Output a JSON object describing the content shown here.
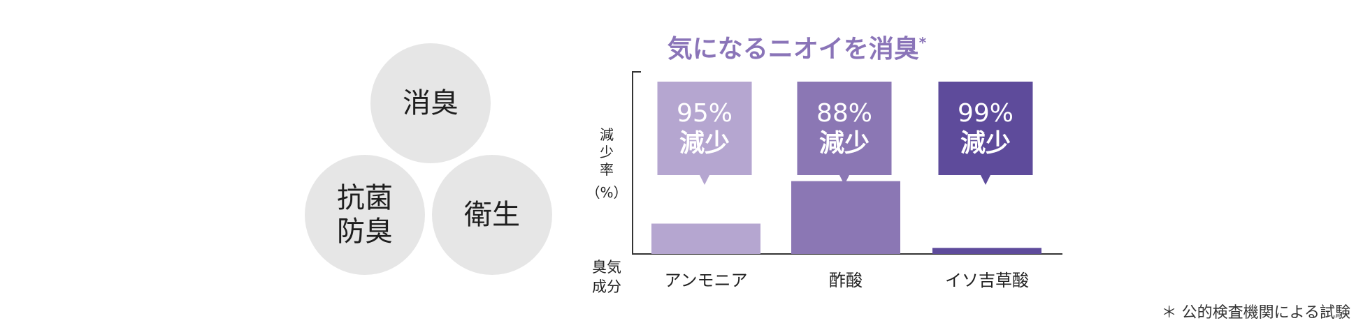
{
  "features": [
    {
      "name": "feature-deodorize",
      "label": "消臭"
    },
    {
      "name": "feature-antibacterial",
      "label": "抗菌\n防臭"
    },
    {
      "name": "feature-hygiene",
      "label": "衛生"
    }
  ],
  "chart_data": {
    "type": "bar",
    "title": "気になるニオイを消臭",
    "title_mark": "*",
    "ylabel_lines": [
      "減",
      "少",
      "率",
      "（%）"
    ],
    "xlabel_lines": [
      "臭気",
      "成分"
    ],
    "categories": [
      "アンモニア",
      "酢酸",
      "イソ吉草酸"
    ],
    "values_remaining_pct": [
      5,
      12,
      1
    ],
    "reduction_pct": [
      95,
      88,
      99
    ],
    "callout_values": [
      "95%",
      "88%",
      "99%"
    ],
    "callout_suffix": "減少",
    "bar_colors": [
      "#b5a6d0",
      "#8b77b4",
      "#5e4b9b"
    ],
    "title_color": "#8a74b8"
  },
  "footnote": "＊ 公的検査機関による試験"
}
